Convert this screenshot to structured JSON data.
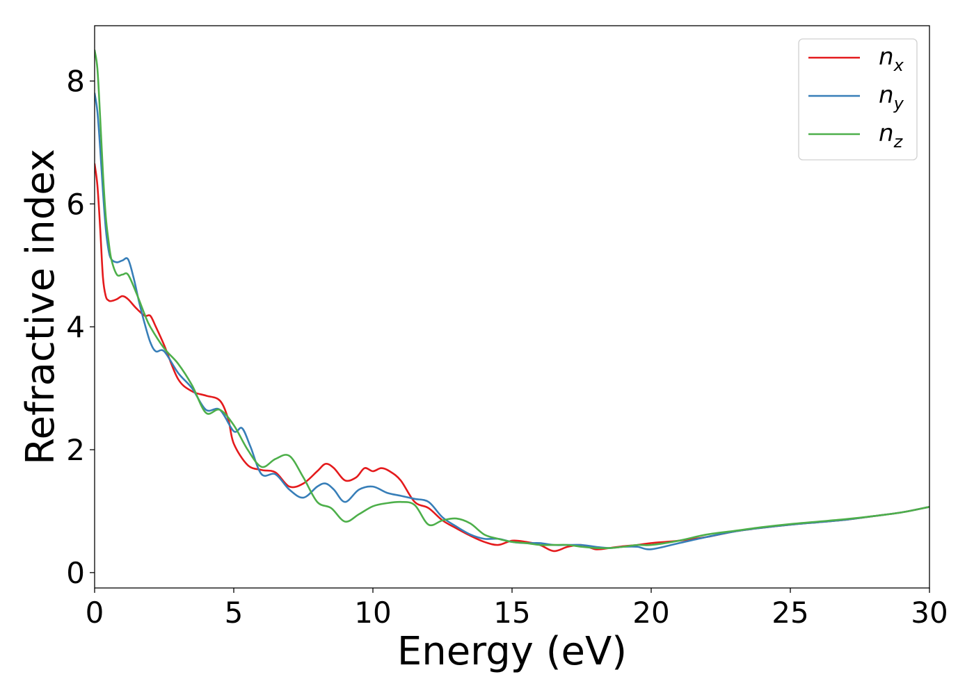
{
  "chart_data": {
    "type": "line",
    "xlabel": "Energy (eV)",
    "ylabel": "Refractive index",
    "xlim": [
      0,
      30
    ],
    "ylim": [
      -0.25,
      8.9
    ],
    "xticks": [
      0,
      5,
      10,
      15,
      20,
      25,
      30
    ],
    "yticks": [
      0,
      2,
      4,
      6,
      8
    ],
    "xtick_labels": [
      "0",
      "5",
      "10",
      "15",
      "20",
      "25",
      "30"
    ],
    "ytick_labels": [
      "0",
      "2",
      "4",
      "6",
      "8"
    ],
    "grid": false,
    "legend": "top-right",
    "series": [
      {
        "name": "n",
        "subscript": "x",
        "color": "#e41a1c",
        "x": [
          0,
          0.1,
          0.2,
          0.3,
          0.4,
          0.5,
          0.6,
          0.8,
          1.0,
          1.2,
          1.5,
          1.8,
          2.0,
          2.2,
          2.5,
          3.0,
          3.5,
          4.0,
          4.5,
          4.8,
          5.0,
          5.5,
          6.0,
          6.5,
          7.0,
          7.5,
          8.0,
          8.3,
          8.6,
          9.0,
          9.4,
          9.7,
          10.0,
          10.3,
          10.6,
          11.0,
          11.5,
          12.0,
          12.5,
          13.0,
          13.5,
          14.0,
          14.5,
          15.0,
          15.5,
          16.0,
          16.5,
          17.0,
          17.5,
          18.0,
          18.5,
          19.0,
          19.5,
          20.0,
          21.0,
          22.0,
          23.0,
          24.0,
          25.0,
          26.0,
          27.0,
          28.0,
          29.0,
          30.0
        ],
        "y": [
          6.65,
          6.3,
          5.6,
          4.8,
          4.5,
          4.43,
          4.42,
          4.45,
          4.5,
          4.45,
          4.3,
          4.18,
          4.18,
          4.0,
          3.7,
          3.15,
          2.95,
          2.88,
          2.8,
          2.5,
          2.1,
          1.75,
          1.67,
          1.63,
          1.4,
          1.45,
          1.65,
          1.77,
          1.7,
          1.5,
          1.55,
          1.7,
          1.65,
          1.7,
          1.65,
          1.5,
          1.15,
          1.05,
          0.85,
          0.72,
          0.6,
          0.5,
          0.45,
          0.52,
          0.5,
          0.45,
          0.35,
          0.42,
          0.45,
          0.38,
          0.4,
          0.43,
          0.45,
          0.48,
          0.52,
          0.58,
          0.67,
          0.73,
          0.78,
          0.82,
          0.86,
          0.92,
          0.98,
          1.07
        ]
      },
      {
        "name": "n",
        "subscript": "y",
        "color": "#377eb8",
        "x": [
          0,
          0.1,
          0.2,
          0.3,
          0.4,
          0.5,
          0.6,
          0.8,
          1.0,
          1.2,
          1.4,
          1.6,
          1.8,
          2.0,
          2.2,
          2.5,
          3.0,
          3.5,
          4.0,
          4.5,
          5.0,
          5.3,
          5.6,
          6.0,
          6.5,
          7.0,
          7.5,
          8.0,
          8.3,
          8.6,
          9.0,
          9.5,
          10.0,
          10.5,
          11.0,
          11.5,
          12.0,
          12.5,
          13.0,
          13.5,
          14.0,
          14.5,
          15.0,
          15.5,
          16.0,
          16.5,
          17.0,
          17.5,
          18.0,
          18.5,
          19.0,
          19.5,
          20.0,
          21.0,
          22.0,
          23.0,
          24.0,
          25.0,
          26.0,
          27.0,
          28.0,
          29.0,
          30.0
        ],
        "y": [
          7.8,
          7.5,
          6.9,
          6.2,
          5.6,
          5.25,
          5.1,
          5.05,
          5.08,
          5.1,
          4.8,
          4.4,
          4.05,
          3.75,
          3.6,
          3.6,
          3.25,
          3.0,
          2.65,
          2.65,
          2.3,
          2.35,
          2.05,
          1.6,
          1.6,
          1.35,
          1.22,
          1.4,
          1.45,
          1.35,
          1.15,
          1.35,
          1.4,
          1.3,
          1.25,
          1.2,
          1.15,
          0.9,
          0.75,
          0.62,
          0.55,
          0.55,
          0.5,
          0.48,
          0.48,
          0.45,
          0.45,
          0.45,
          0.42,
          0.4,
          0.42,
          0.42,
          0.38,
          0.48,
          0.58,
          0.67,
          0.73,
          0.78,
          0.82,
          0.86,
          0.92,
          0.98,
          1.07
        ]
      },
      {
        "name": "n",
        "subscript": "z",
        "color": "#4daf4a",
        "x": [
          0,
          0.1,
          0.2,
          0.3,
          0.4,
          0.5,
          0.6,
          0.8,
          1.0,
          1.2,
          1.5,
          1.8,
          2.0,
          2.5,
          3.0,
          3.5,
          4.0,
          4.5,
          5.0,
          5.5,
          6.0,
          6.5,
          7.0,
          7.5,
          8.0,
          8.5,
          9.0,
          9.5,
          10.0,
          10.5,
          11.0,
          11.5,
          12.0,
          12.5,
          13.0,
          13.5,
          14.0,
          14.5,
          15.0,
          15.5,
          16.0,
          16.5,
          17.0,
          17.5,
          18.0,
          18.5,
          19.0,
          19.5,
          20.0,
          21.0,
          22.0,
          23.0,
          24.0,
          25.0,
          26.0,
          27.0,
          28.0,
          29.0,
          30.0
        ],
        "y": [
          8.5,
          8.2,
          7.4,
          6.5,
          5.8,
          5.4,
          5.1,
          4.85,
          4.85,
          4.85,
          4.55,
          4.2,
          4.0,
          3.65,
          3.4,
          3.05,
          2.6,
          2.65,
          2.4,
          2.0,
          1.72,
          1.85,
          1.9,
          1.55,
          1.15,
          1.05,
          0.83,
          0.95,
          1.08,
          1.13,
          1.15,
          1.1,
          0.78,
          0.85,
          0.88,
          0.8,
          0.62,
          0.55,
          0.5,
          0.48,
          0.45,
          0.45,
          0.45,
          0.42,
          0.4,
          0.4,
          0.42,
          0.45,
          0.45,
          0.52,
          0.62,
          0.68,
          0.74,
          0.79,
          0.83,
          0.87,
          0.92,
          0.98,
          1.07
        ]
      }
    ]
  }
}
